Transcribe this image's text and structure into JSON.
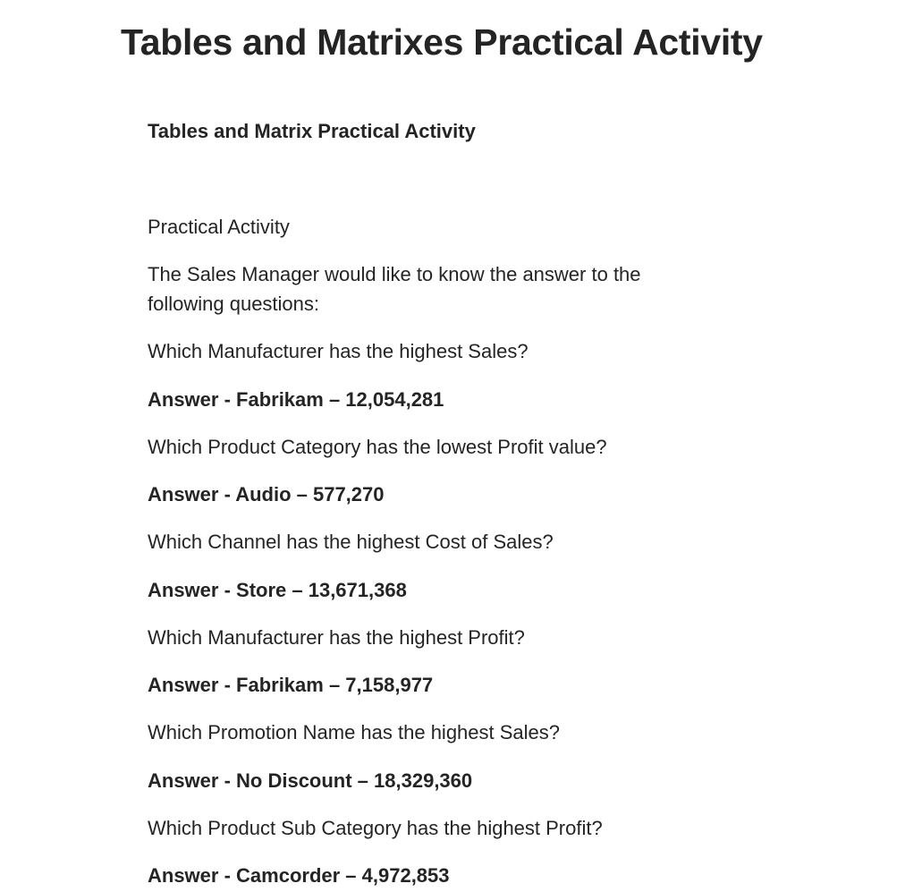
{
  "page": {
    "title": "Tables and Matrixes Practical Activity"
  },
  "article": {
    "heading": "Tables and Matrix Practical Activity",
    "intro_label": "Practical Activity",
    "intro_text": "The Sales Manager would like to know the answer to the following questions:",
    "qa": [
      {
        "question": "Which Manufacturer has the highest Sales?",
        "answer": "Answer - Fabrikam – 12,054,281"
      },
      {
        "question": "Which Product Category has the lowest Profit value?",
        "answer": "Answer - Audio – 577,270"
      },
      {
        "question": "Which Channel has the highest Cost of Sales?",
        "answer": "Answer - Store – 13,671,368"
      },
      {
        "question": "Which Manufacturer has the highest Profit?",
        "answer": "Answer - Fabrikam – 7,158,977"
      },
      {
        "question": "Which Promotion Name has the highest Sales?",
        "answer": "Answer - No Discount – 18,329,360"
      },
      {
        "question": "Which Product Sub Category has the highest Profit?",
        "answer": "Answer - Camcorder – 4,972,853"
      }
    ]
  }
}
